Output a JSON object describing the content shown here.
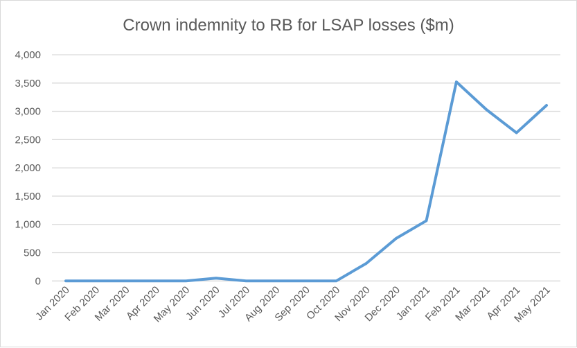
{
  "chart_data": {
    "type": "line",
    "title": "Crown indemnity to RB for LSAP losses ($m)",
    "xlabel": "",
    "ylabel": "",
    "categories": [
      "Jan 2020",
      "Feb 2020",
      "Mar 2020",
      "Apr 2020",
      "May 2020",
      "Jun 2020",
      "Jul 2020",
      "Aug 2020",
      "Sep 2020",
      "Oct 2020",
      "Nov 2020",
      "Dec 2020",
      "Jan 2021",
      "Feb 2021",
      "Mar 2021",
      "Apr 2021",
      "May 2021"
    ],
    "series": [
      {
        "values": [
          0,
          0,
          0,
          0,
          0,
          50,
          0,
          0,
          0,
          0,
          310,
          755,
          1065,
          3520,
          3030,
          2620,
          3105
        ],
        "color": "#5b9bd5"
      }
    ],
    "ylim": [
      0,
      4000
    ],
    "yticks": [
      0,
      500,
      1000,
      1500,
      2000,
      2500,
      3000,
      3500,
      4000
    ],
    "ytick_labels": [
      "0",
      "500",
      "1,000",
      "1,500",
      "2,000",
      "2,500",
      "3,000",
      "3,500",
      "4,000"
    ],
    "grid": "horizontal",
    "legend": "none"
  }
}
